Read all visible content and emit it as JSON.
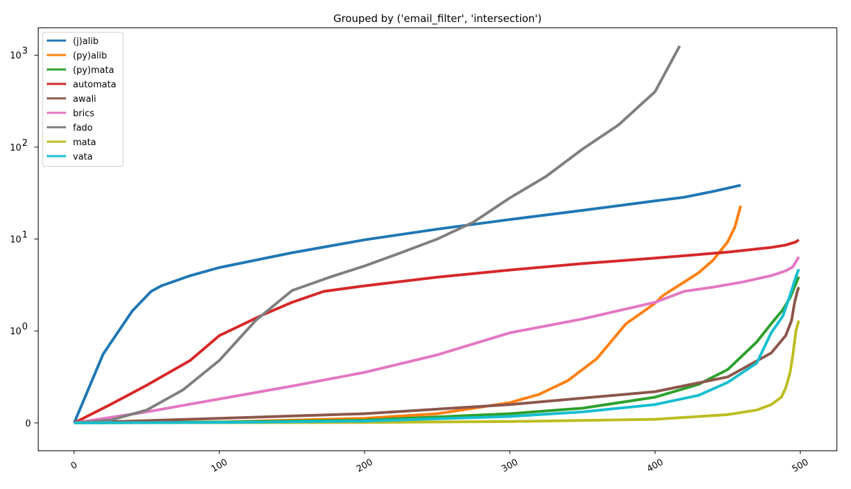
{
  "chart_data": {
    "type": "line",
    "title": "Grouped by ('email_filter', 'intersection')",
    "xlabel": "",
    "ylabel": "",
    "y_scale": "symlog",
    "xlim": [
      -25,
      525
    ],
    "ylim": [
      -0.3,
      2000
    ],
    "grid": false,
    "legend_position": "upper left",
    "x_ticks": [
      {
        "value": 0,
        "label": "0"
      },
      {
        "value": 100,
        "label": "100"
      },
      {
        "value": 200,
        "label": "200"
      },
      {
        "value": 300,
        "label": "300"
      },
      {
        "value": 400,
        "label": "400"
      },
      {
        "value": 500,
        "label": "500"
      }
    ],
    "y_ticks": [
      {
        "value": 0,
        "label": "0",
        "exp": ""
      },
      {
        "value": 1,
        "label": "10",
        "exp": "0"
      },
      {
        "value": 10,
        "label": "10",
        "exp": "1"
      },
      {
        "value": 100,
        "label": "10",
        "exp": "2"
      },
      {
        "value": 1000,
        "label": "10",
        "exp": "3"
      }
    ],
    "series": [
      {
        "name": "(j)alib",
        "color": "#1f77b4",
        "x": [
          0,
          20,
          40,
          53,
          60,
          80,
          100,
          150,
          200,
          250,
          300,
          350,
          400,
          420,
          440,
          459
        ],
        "y": [
          0,
          0.75,
          1.65,
          2.7,
          3.1,
          4.0,
          4.9,
          7.1,
          9.8,
          12.8,
          16.3,
          20.5,
          26,
          28.5,
          33,
          38.5
        ]
      },
      {
        "name": "(py)alib",
        "color": "#ff7f0e",
        "x": [
          0,
          100,
          200,
          250,
          300,
          320,
          340,
          360,
          380,
          400,
          405,
          410,
          420,
          430,
          440,
          450,
          455,
          459
        ],
        "y": [
          0,
          0.01,
          0.05,
          0.1,
          0.22,
          0.31,
          0.46,
          0.7,
          1.2,
          2.0,
          2.4,
          2.7,
          3.4,
          4.3,
          5.9,
          9.3,
          13.5,
          23
        ]
      },
      {
        "name": "(py)mata",
        "color": "#2ca02c",
        "x": [
          0,
          100,
          200,
          300,
          350,
          400,
          430,
          450,
          470,
          480,
          488,
          493,
          496,
          499
        ],
        "y": [
          0,
          0.01,
          0.03,
          0.1,
          0.16,
          0.28,
          0.42,
          0.58,
          0.88,
          1.2,
          1.7,
          2.3,
          3.0,
          3.9
        ]
      },
      {
        "name": "automata",
        "color": "#d62728",
        "x": [
          0,
          25,
          50,
          80,
          100,
          130,
          150,
          172,
          200,
          250,
          300,
          350,
          400,
          450,
          480,
          490,
          497,
          499
        ],
        "y": [
          0,
          0.2,
          0.41,
          0.68,
          0.95,
          1.5,
          2.05,
          2.7,
          3.1,
          3.85,
          4.6,
          5.4,
          6.2,
          7.2,
          8.1,
          8.6,
          9.3,
          9.8
        ]
      },
      {
        "name": "awali",
        "color": "#8c564b",
        "x": [
          0,
          100,
          200,
          300,
          400,
          450,
          480,
          490,
          494,
          496,
          498,
          499
        ],
        "y": [
          0,
          0.05,
          0.1,
          0.2,
          0.34,
          0.5,
          0.76,
          0.95,
          1.3,
          2.0,
          2.7,
          3.0
        ]
      },
      {
        "name": "brics",
        "color": "#e377c2",
        "x": [
          0,
          50,
          100,
          150,
          200,
          250,
          300,
          350,
          400,
          420,
          440,
          460,
          480,
          490,
          495,
          499
        ],
        "y": [
          0,
          0.12,
          0.26,
          0.4,
          0.55,
          0.74,
          0.98,
          1.35,
          2.05,
          2.7,
          3.0,
          3.4,
          4.0,
          4.5,
          5.0,
          6.4
        ]
      },
      {
        "name": "fado",
        "color": "#7f7f7f",
        "x": [
          0,
          25,
          50,
          75,
          100,
          125,
          150,
          175,
          200,
          225,
          250,
          275,
          300,
          325,
          350,
          375,
          400,
          417
        ],
        "y": [
          0,
          0.03,
          0.14,
          0.36,
          0.68,
          1.3,
          2.75,
          3.8,
          5.1,
          7.1,
          10,
          15.3,
          28,
          48,
          95,
          175,
          400,
          1260
        ]
      },
      {
        "name": "mata",
        "color": "#bcbd22",
        "x": [
          0,
          200,
          300,
          400,
          450,
          470,
          480,
          487,
          490,
          493,
          495,
          497,
          499
        ],
        "y": [
          0,
          0.005,
          0.015,
          0.04,
          0.09,
          0.14,
          0.2,
          0.28,
          0.38,
          0.55,
          0.75,
          1.0,
          1.3
        ]
      },
      {
        "name": "vata",
        "color": "#17becf",
        "x": [
          0,
          100,
          200,
          300,
          350,
          400,
          430,
          450,
          470,
          480,
          488,
          492,
          495,
          497,
          499
        ],
        "y": [
          0,
          0.005,
          0.02,
          0.07,
          0.12,
          0.2,
          0.3,
          0.44,
          0.65,
          0.98,
          1.45,
          2.2,
          3.1,
          3.9,
          4.7
        ]
      }
    ]
  }
}
